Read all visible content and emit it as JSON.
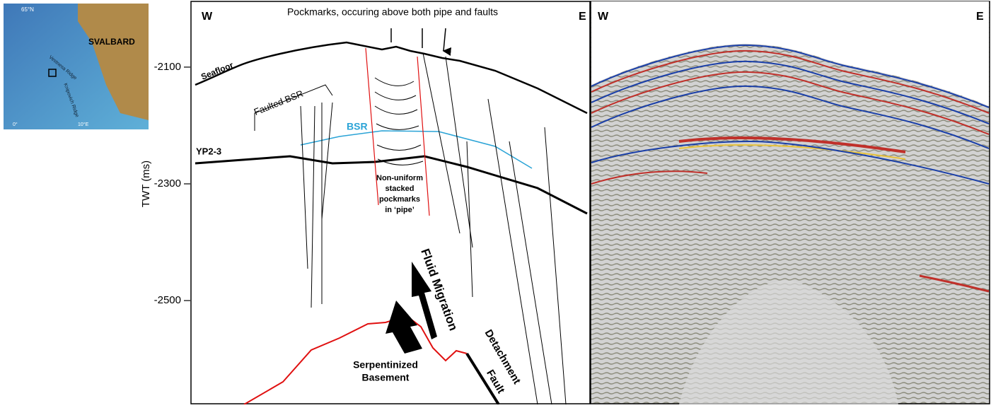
{
  "map": {
    "latitude": "65°N",
    "ridge_1": "Vestnesa Ridge",
    "ridge_2": "Knipovich Ridge",
    "land": "SVALBARD",
    "lon_1": "0°",
    "lon_2": "10°E"
  },
  "interpretation": {
    "west": "W",
    "east": "E",
    "title": "Pockmarks, occuring above both pipe and faults",
    "axis": {
      "label": "TWT (ms)",
      "ylim": [
        -2678,
        -1985
      ],
      "yticks": [
        -2100,
        -2300,
        -2500
      ]
    },
    "seafloor": "Seafloor",
    "faulted_bsr": "Faulted BSR",
    "bsr": "BSR",
    "horizon": "YP2-3",
    "pipe_note": [
      "Non-uniform",
      "stacked",
      "pockmarks",
      "in ‘pipe’"
    ],
    "fluid": "Fluid Migration",
    "fault": [
      "Detachment",
      "Fault"
    ],
    "basement": [
      "Serpentinized",
      "Basement"
    ]
  },
  "seismic": {
    "west": "W",
    "east": "E"
  }
}
